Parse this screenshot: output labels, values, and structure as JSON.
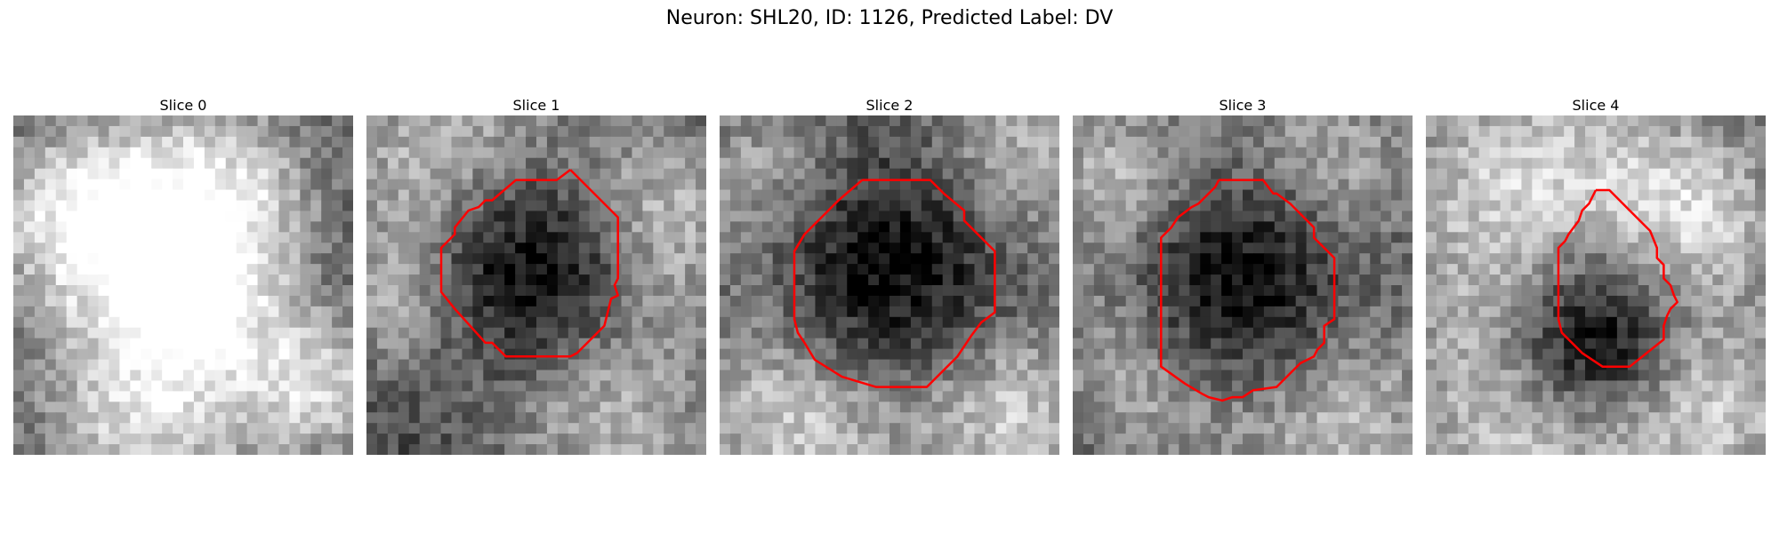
{
  "figure": {
    "title": "Neuron: SHL20, ID: 1126, Predicted Label: DV",
    "colors": {
      "contour": "#ff0000",
      "colormap": "gray"
    }
  },
  "slices": [
    {
      "title": "Slice 0",
      "has_contour": false
    },
    {
      "title": "Slice 1",
      "has_contour": true
    },
    {
      "title": "Slice 2",
      "has_contour": true
    },
    {
      "title": "Slice 3",
      "has_contour": true
    },
    {
      "title": "Slice 4",
      "has_contour": true
    }
  ]
}
